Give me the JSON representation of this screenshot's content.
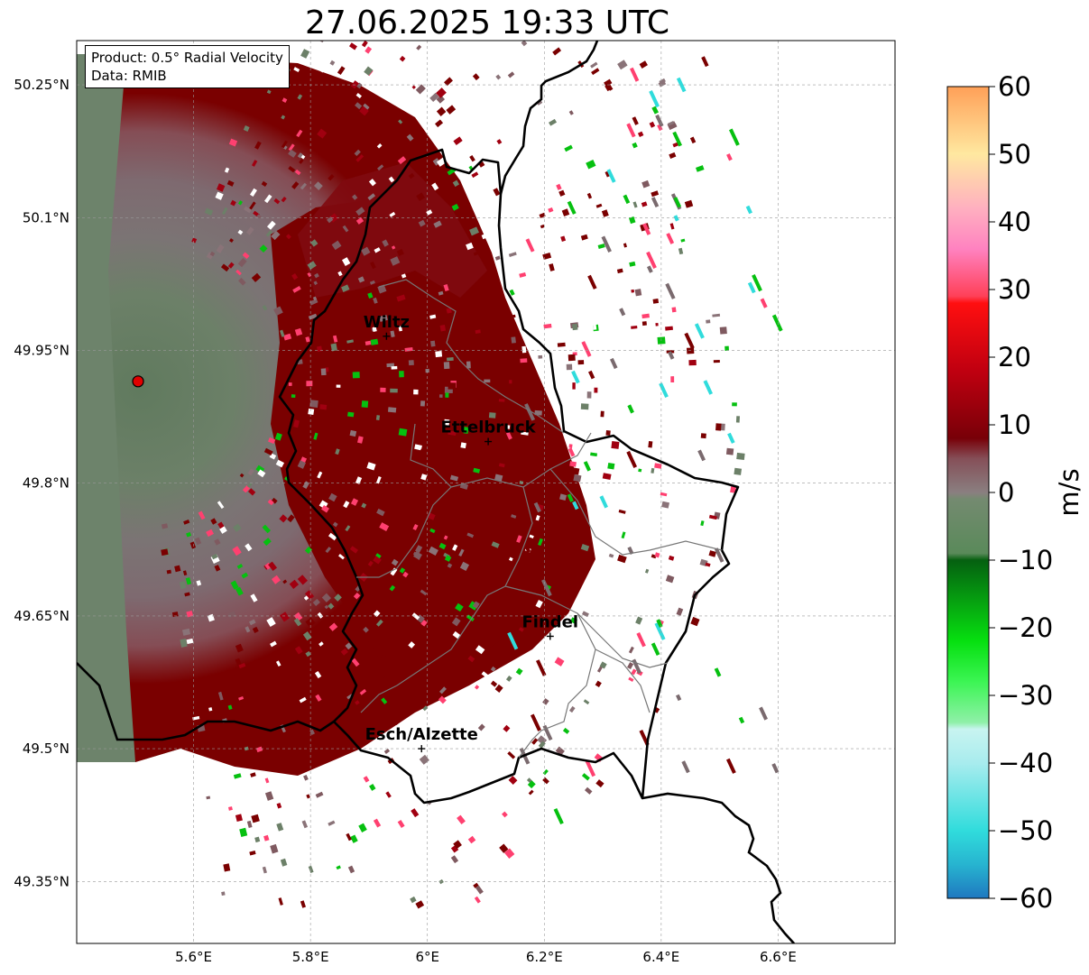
{
  "title": "27.06.2025 19:33 UTC",
  "info": {
    "product": "Product: 0.5° Radial Velocity",
    "data_source": "Data: RMIB"
  },
  "map": {
    "lon_range": [
      5.4,
      6.8
    ],
    "lat_range": [
      49.28,
      50.3
    ],
    "x_ticks": [
      {
        "value": 5.6,
        "label": "5.6°E"
      },
      {
        "value": 5.8,
        "label": "5.8°E"
      },
      {
        "value": 6.0,
        "label": "6°E"
      },
      {
        "value": 6.2,
        "label": "6.2°E"
      },
      {
        "value": 6.4,
        "label": "6.4°E"
      },
      {
        "value": 6.6,
        "label": "6.6°E"
      }
    ],
    "y_ticks": [
      {
        "value": 50.25,
        "label": "50.25°N"
      },
      {
        "value": 50.1,
        "label": "50.1°N"
      },
      {
        "value": 49.95,
        "label": "49.95°N"
      },
      {
        "value": 49.8,
        "label": "49.8°N"
      },
      {
        "value": 49.65,
        "label": "49.65°N"
      },
      {
        "value": 49.5,
        "label": "49.5°N"
      },
      {
        "value": 49.35,
        "label": "49.35°N"
      }
    ],
    "grid": true,
    "radar_site": {
      "lon": 5.505,
      "lat": 49.915
    },
    "cities": [
      {
        "name": "Wiltz",
        "lon": 5.93,
        "lat": 49.966
      },
      {
        "name": "Ettelbruck",
        "lon": 6.104,
        "lat": 49.847
      },
      {
        "name": "Findel",
        "lon": 6.21,
        "lat": 49.627
      },
      {
        "name": "Esch/Alzette",
        "lon": 5.99,
        "lat": 49.5
      }
    ]
  },
  "colorbar": {
    "label": "m/s",
    "min": -60,
    "max": 60,
    "ticks": [
      60,
      50,
      40,
      30,
      20,
      10,
      0,
      -10,
      -20,
      -30,
      -40,
      -50,
      -60
    ],
    "tick_labels": [
      "60",
      "50",
      "40",
      "30",
      "20",
      "10",
      "0",
      "−10",
      "−20",
      "−30",
      "−40",
      "−50",
      "−60"
    ],
    "stops": [
      {
        "v": -60,
        "c": "#1f78c0"
      },
      {
        "v": -55,
        "c": "#27b4d0"
      },
      {
        "v": -50,
        "c": "#30dcdc"
      },
      {
        "v": -40,
        "c": "#a8ecee"
      },
      {
        "v": -35,
        "c": "#c8f4f0"
      },
      {
        "v": -34,
        "c": "#8ff0a8"
      },
      {
        "v": -28,
        "c": "#3cf554"
      },
      {
        "v": -22,
        "c": "#06e010"
      },
      {
        "v": -10,
        "c": "#056010"
      },
      {
        "v": -9,
        "c": "#5a8a5a"
      },
      {
        "v": -1,
        "c": "#748a70"
      },
      {
        "v": 0,
        "c": "#8a7f80"
      },
      {
        "v": 5,
        "c": "#854f58"
      },
      {
        "v": 8,
        "c": "#780008"
      },
      {
        "v": 18,
        "c": "#c00010"
      },
      {
        "v": 28,
        "c": "#ff0f10"
      },
      {
        "v": 29,
        "c": "#ff4058"
      },
      {
        "v": 36,
        "c": "#ff82c0"
      },
      {
        "v": 42,
        "c": "#ffb0c0"
      },
      {
        "v": 50,
        "c": "#ffe8a0"
      },
      {
        "v": 60,
        "c": "#ffa058"
      }
    ]
  },
  "colors": {
    "inbound_dark": "#5e8a5e",
    "outbound_dark": "#7a0000",
    "neutral": "#8a7378",
    "radar_marker": "#e00000"
  }
}
